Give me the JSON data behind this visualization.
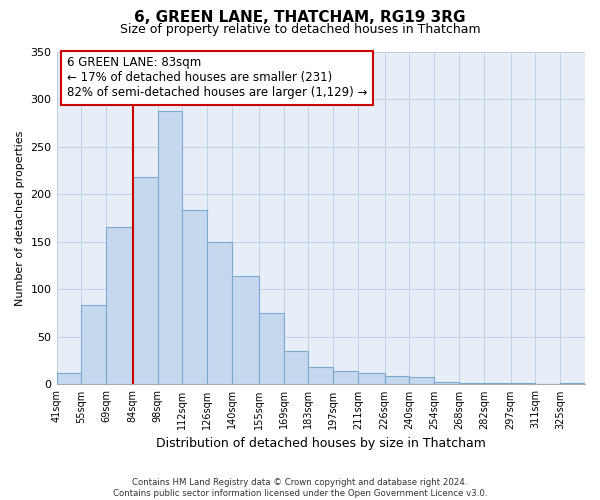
{
  "title": "6, GREEN LANE, THATCHAM, RG19 3RG",
  "subtitle": "Size of property relative to detached houses in Thatcham",
  "xlabel": "Distribution of detached houses by size in Thatcham",
  "ylabel": "Number of detached properties",
  "bar_color": "#c5d8ee",
  "bar_edge_color": "#7aaad0",
  "vline_x": 84,
  "vline_color": "#cc0000",
  "categories": [
    "41sqm",
    "55sqm",
    "69sqm",
    "84sqm",
    "98sqm",
    "112sqm",
    "126sqm",
    "140sqm",
    "155sqm",
    "169sqm",
    "183sqm",
    "197sqm",
    "211sqm",
    "226sqm",
    "240sqm",
    "254sqm",
    "268sqm",
    "282sqm",
    "297sqm",
    "311sqm",
    "325sqm"
  ],
  "bin_edges": [
    41,
    55,
    69,
    84,
    98,
    112,
    126,
    140,
    155,
    169,
    183,
    197,
    211,
    226,
    240,
    254,
    268,
    282,
    297,
    311,
    325,
    339
  ],
  "values": [
    12,
    84,
    165,
    218,
    287,
    183,
    150,
    114,
    75,
    35,
    18,
    14,
    12,
    9,
    8,
    3,
    2,
    1,
    1,
    0,
    2
  ],
  "ylim": [
    0,
    350
  ],
  "yticks": [
    0,
    50,
    100,
    150,
    200,
    250,
    300,
    350
  ],
  "annotation_title": "6 GREEN LANE: 83sqm",
  "annotation_line1": "← 17% of detached houses are smaller (231)",
  "annotation_line2": "82% of semi-detached houses are larger (1,129) →",
  "annotation_box_color": "#ffffff",
  "annotation_box_edge": "#cc0000",
  "footer_line1": "Contains HM Land Registry data © Crown copyright and database right 2024.",
  "footer_line2": "Contains public sector information licensed under the Open Government Licence v3.0.",
  "bg_color": "#ffffff",
  "plot_bg_color": "#e8eef8"
}
